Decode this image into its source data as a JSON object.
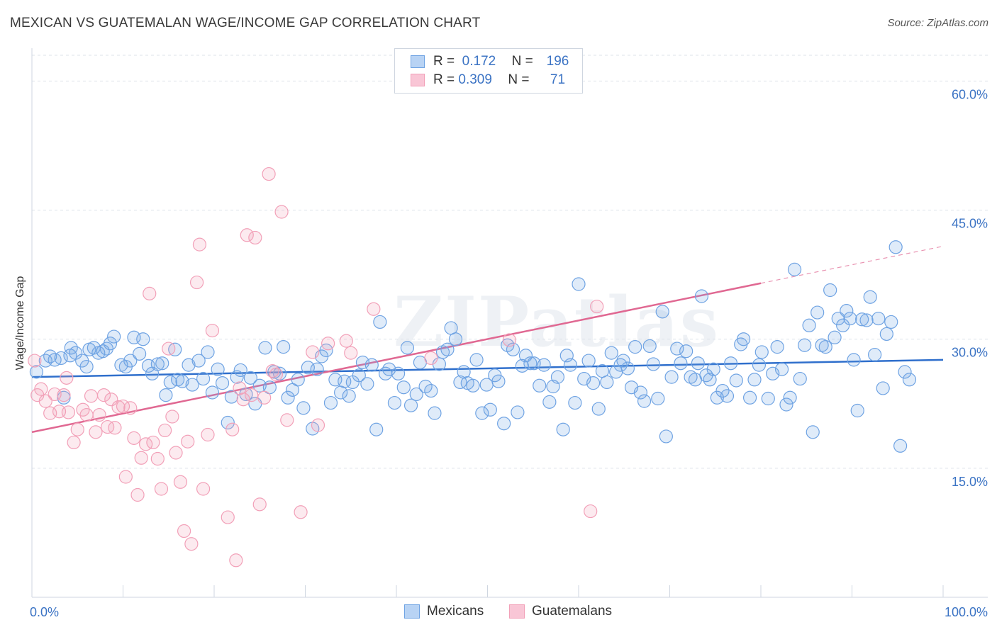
{
  "title": "MEXICAN VS GUATEMALAN WAGE/INCOME GAP CORRELATION CHART",
  "source": "Source: ZipAtlas.com",
  "watermark": "ZIPatlas",
  "legend": {
    "rows": [
      {
        "r_label": "R =",
        "r_value": "0.172",
        "n_label": "N =",
        "n_value": "196"
      },
      {
        "r_label": "R =",
        "r_value": "0.309",
        "n_label": "N =",
        "n_value": "71"
      }
    ]
  },
  "bottom_legend": [
    "Mexicans",
    "Guatemalans"
  ],
  "colors": {
    "blue": "#6fa3e3",
    "blue_line": "#2f6fcc",
    "pink": "#f2a0b8",
    "pink_line": "#e06892",
    "grid": "#dde3ea",
    "tick_text": "#3b73c4"
  },
  "chart_data": {
    "type": "scatter",
    "xlabel": "",
    "ylabel": "Wage/Income Gap",
    "xlim": [
      0,
      100
    ],
    "ylim": [
      0,
      63
    ],
    "x_tick_labels": [
      "0.0%",
      "100.0%"
    ],
    "y_ticks": [
      15,
      30,
      45,
      60
    ],
    "y_tick_labels": [
      "15.0%",
      "30.0%",
      "45.0%",
      "60.0%"
    ],
    "grid": true,
    "legend_position": "top-center",
    "series": [
      {
        "name": "Mexicans",
        "color": "#6fa3e3",
        "trend": {
          "x0": 0,
          "y0": 25.6,
          "x1": 100,
          "y1": 27.6
        },
        "points": [
          [
            0.5,
            26.2
          ],
          [
            1.5,
            27.5
          ],
          [
            2.0,
            28.0
          ],
          [
            2.5,
            27.6
          ],
          [
            3.2,
            27.8
          ],
          [
            3.5,
            23.2
          ],
          [
            4.2,
            28.1
          ],
          [
            4.3,
            29.0
          ],
          [
            4.8,
            28.4
          ],
          [
            5.5,
            27.5
          ],
          [
            6.0,
            26.8
          ],
          [
            6.3,
            28.8
          ],
          [
            6.8,
            29.0
          ],
          [
            7.3,
            28.4
          ],
          [
            7.8,
            28.6
          ],
          [
            8.2,
            28.9
          ],
          [
            8.6,
            29.5
          ],
          [
            9.0,
            30.3
          ],
          [
            9.8,
            27.0
          ],
          [
            10.3,
            26.8
          ],
          [
            10.8,
            27.5
          ],
          [
            11.2,
            30.2
          ],
          [
            11.8,
            28.3
          ],
          [
            12.2,
            30.0
          ],
          [
            12.8,
            26.9
          ],
          [
            13.2,
            26.0
          ],
          [
            13.8,
            27.1
          ],
          [
            14.3,
            27.2
          ],
          [
            14.7,
            23.5
          ],
          [
            15.2,
            25.0
          ],
          [
            15.7,
            28.8
          ],
          [
            16.0,
            25.3
          ],
          [
            16.5,
            25.1
          ],
          [
            17.2,
            27.0
          ],
          [
            17.6,
            24.7
          ],
          [
            18.3,
            27.5
          ],
          [
            18.8,
            25.4
          ],
          [
            19.3,
            28.5
          ],
          [
            19.8,
            23.8
          ],
          [
            20.4,
            26.5
          ],
          [
            20.9,
            24.9
          ],
          [
            21.5,
            20.3
          ],
          [
            21.9,
            23.3
          ],
          [
            22.5,
            25.6
          ],
          [
            22.9,
            26.4
          ],
          [
            23.5,
            23.6
          ],
          [
            24.0,
            25.5
          ],
          [
            24.5,
            22.5
          ],
          [
            25.0,
            24.6
          ],
          [
            25.6,
            29.0
          ],
          [
            26.1,
            24.4
          ],
          [
            26.6,
            26.2
          ],
          [
            27.2,
            26.0
          ],
          [
            27.6,
            29.1
          ],
          [
            28.1,
            23.2
          ],
          [
            28.6,
            24.1
          ],
          [
            29.2,
            25.3
          ],
          [
            29.8,
            22.0
          ],
          [
            30.3,
            26.7
          ],
          [
            30.8,
            19.6
          ],
          [
            31.3,
            26.5
          ],
          [
            31.8,
            28.0
          ],
          [
            32.3,
            28.7
          ],
          [
            32.8,
            22.6
          ],
          [
            33.3,
            25.3
          ],
          [
            33.9,
            23.8
          ],
          [
            34.3,
            25.1
          ],
          [
            34.8,
            23.4
          ],
          [
            35.2,
            25.0
          ],
          [
            35.9,
            25.8
          ],
          [
            36.3,
            27.3
          ],
          [
            36.8,
            24.8
          ],
          [
            37.3,
            27.0
          ],
          [
            37.8,
            19.5
          ],
          [
            38.2,
            32.0
          ],
          [
            38.8,
            26.0
          ],
          [
            39.2,
            26.5
          ],
          [
            39.8,
            22.6
          ],
          [
            40.2,
            26.0
          ],
          [
            40.8,
            24.4
          ],
          [
            41.2,
            29.0
          ],
          [
            41.6,
            22.3
          ],
          [
            42.2,
            23.6
          ],
          [
            42.6,
            27.3
          ],
          [
            43.2,
            24.5
          ],
          [
            43.8,
            24.0
          ],
          [
            44.2,
            21.4
          ],
          [
            44.7,
            27.1
          ],
          [
            45.1,
            28.5
          ],
          [
            45.6,
            28.8
          ],
          [
            46.0,
            31.3
          ],
          [
            46.5,
            30.0
          ],
          [
            47.0,
            25.0
          ],
          [
            47.4,
            26.2
          ],
          [
            47.8,
            24.9
          ],
          [
            48.4,
            24.6
          ],
          [
            48.8,
            27.6
          ],
          [
            49.4,
            21.4
          ],
          [
            49.9,
            24.7
          ],
          [
            50.3,
            21.8
          ],
          [
            50.8,
            25.8
          ],
          [
            51.2,
            25.1
          ],
          [
            51.8,
            20.2
          ],
          [
            52.2,
            29.3
          ],
          [
            52.8,
            28.8
          ],
          [
            53.3,
            21.5
          ],
          [
            53.8,
            26.9
          ],
          [
            54.2,
            28.1
          ],
          [
            54.7,
            27.2
          ],
          [
            55.1,
            27.2
          ],
          [
            55.7,
            24.6
          ],
          [
            56.2,
            27.0
          ],
          [
            56.8,
            22.7
          ],
          [
            57.2,
            24.5
          ],
          [
            57.7,
            25.6
          ],
          [
            58.3,
            19.5
          ],
          [
            58.7,
            28.1
          ],
          [
            59.1,
            27.0
          ],
          [
            59.6,
            22.6
          ],
          [
            60.0,
            36.4
          ],
          [
            60.6,
            25.4
          ],
          [
            61.1,
            27.5
          ],
          [
            61.6,
            24.9
          ],
          [
            62.2,
            21.9
          ],
          [
            62.6,
            26.3
          ],
          [
            63.1,
            25.0
          ],
          [
            63.6,
            28.4
          ],
          [
            64.1,
            26.2
          ],
          [
            64.6,
            27.0
          ],
          [
            64.9,
            27.5
          ],
          [
            65.4,
            26.6
          ],
          [
            65.8,
            24.4
          ],
          [
            66.2,
            29.1
          ],
          [
            66.8,
            23.8
          ],
          [
            67.2,
            22.8
          ],
          [
            67.8,
            29.2
          ],
          [
            68.2,
            27.1
          ],
          [
            68.7,
            23.1
          ],
          [
            69.2,
            33.2
          ],
          [
            69.6,
            18.7
          ],
          [
            70.2,
            25.6
          ],
          [
            70.8,
            28.9
          ],
          [
            71.2,
            27.2
          ],
          [
            71.8,
            28.6
          ],
          [
            72.3,
            25.6
          ],
          [
            72.8,
            25.3
          ],
          [
            73.1,
            27.2
          ],
          [
            73.5,
            35.0
          ],
          [
            74.0,
            25.8
          ],
          [
            74.4,
            25.3
          ],
          [
            74.8,
            26.5
          ],
          [
            75.2,
            23.2
          ],
          [
            75.8,
            24.0
          ],
          [
            76.3,
            23.4
          ],
          [
            76.7,
            27.2
          ],
          [
            77.3,
            25.2
          ],
          [
            77.8,
            29.4
          ],
          [
            78.1,
            30.0
          ],
          [
            78.8,
            23.2
          ],
          [
            79.3,
            25.3
          ],
          [
            79.8,
            27.0
          ],
          [
            80.1,
            28.5
          ],
          [
            80.8,
            23.1
          ],
          [
            81.3,
            26.0
          ],
          [
            81.8,
            29.1
          ],
          [
            82.3,
            26.5
          ],
          [
            82.8,
            22.4
          ],
          [
            83.2,
            23.2
          ],
          [
            83.7,
            38.1
          ],
          [
            84.3,
            25.4
          ],
          [
            84.8,
            29.3
          ],
          [
            85.3,
            31.6
          ],
          [
            85.7,
            19.2
          ],
          [
            86.2,
            33.1
          ],
          [
            86.7,
            29.3
          ],
          [
            87.1,
            29.1
          ],
          [
            87.6,
            35.7
          ],
          [
            88.1,
            30.2
          ],
          [
            88.5,
            32.4
          ],
          [
            89.0,
            31.6
          ],
          [
            89.4,
            33.3
          ],
          [
            89.8,
            32.4
          ],
          [
            90.2,
            27.6
          ],
          [
            90.6,
            21.7
          ],
          [
            91.1,
            32.3
          ],
          [
            91.6,
            32.2
          ],
          [
            92.0,
            34.9
          ],
          [
            92.5,
            28.2
          ],
          [
            92.9,
            32.4
          ],
          [
            93.4,
            24.3
          ],
          [
            93.8,
            30.6
          ],
          [
            94.3,
            32.0
          ],
          [
            94.8,
            40.7
          ],
          [
            95.3,
            17.6
          ],
          [
            95.8,
            26.2
          ],
          [
            96.3,
            25.3
          ]
        ]
      },
      {
        "name": "Guatemalans",
        "color": "#f2a0b8",
        "trend": {
          "x0": 0,
          "y0": 19.2,
          "x1": 80,
          "y1": 36.5,
          "dashed_to_x": 100,
          "dashed_to_y": 40.8
        },
        "points": [
          [
            0.3,
            27.5
          ],
          [
            0.6,
            23.5
          ],
          [
            1.0,
            24.2
          ],
          [
            1.5,
            22.8
          ],
          [
            2.0,
            21.4
          ],
          [
            2.5,
            23.6
          ],
          [
            3.0,
            21.6
          ],
          [
            3.5,
            23.5
          ],
          [
            3.8,
            25.5
          ],
          [
            4.0,
            21.5
          ],
          [
            4.6,
            18.0
          ],
          [
            5.0,
            19.5
          ],
          [
            5.6,
            21.8
          ],
          [
            6.0,
            21.2
          ],
          [
            6.5,
            23.4
          ],
          [
            7.0,
            19.2
          ],
          [
            7.4,
            21.2
          ],
          [
            7.9,
            23.5
          ],
          [
            8.3,
            19.8
          ],
          [
            8.7,
            23.0
          ],
          [
            9.1,
            19.7
          ],
          [
            9.5,
            22.1
          ],
          [
            10.0,
            22.2
          ],
          [
            10.3,
            14.0
          ],
          [
            10.8,
            22.0
          ],
          [
            11.2,
            18.5
          ],
          [
            11.6,
            11.9
          ],
          [
            12.0,
            16.2
          ],
          [
            12.5,
            17.8
          ],
          [
            12.9,
            35.3
          ],
          [
            13.3,
            18.0
          ],
          [
            13.8,
            16.1
          ],
          [
            14.2,
            12.6
          ],
          [
            14.6,
            19.4
          ],
          [
            15.0,
            28.9
          ],
          [
            15.4,
            21.0
          ],
          [
            15.8,
            16.8
          ],
          [
            16.3,
            13.4
          ],
          [
            16.7,
            7.7
          ],
          [
            17.1,
            18.1
          ],
          [
            17.5,
            6.2
          ],
          [
            18.1,
            36.6
          ],
          [
            18.4,
            41.0
          ],
          [
            18.8,
            12.6
          ],
          [
            19.3,
            18.9
          ],
          [
            19.8,
            31.0
          ],
          [
            21.5,
            9.3
          ],
          [
            22.0,
            19.5
          ],
          [
            22.4,
            4.3
          ],
          [
            22.8,
            24.3
          ],
          [
            23.2,
            23.0
          ],
          [
            23.6,
            42.1
          ],
          [
            24.1,
            23.5
          ],
          [
            24.5,
            41.8
          ],
          [
            25.0,
            10.8
          ],
          [
            25.5,
            23.2
          ],
          [
            26.0,
            49.2
          ],
          [
            26.4,
            26.3
          ],
          [
            26.8,
            25.9
          ],
          [
            27.4,
            44.8
          ],
          [
            28.0,
            20.6
          ],
          [
            29.5,
            9.9
          ],
          [
            30.8,
            28.5
          ],
          [
            31.4,
            20.0
          ],
          [
            32.5,
            29.5
          ],
          [
            34.5,
            29.8
          ],
          [
            35.0,
            28.4
          ],
          [
            37.5,
            33.5
          ],
          [
            43.8,
            27.8
          ],
          [
            52.4,
            29.9
          ],
          [
            62.0,
            33.8
          ],
          [
            61.3,
            10.0
          ]
        ]
      }
    ]
  }
}
